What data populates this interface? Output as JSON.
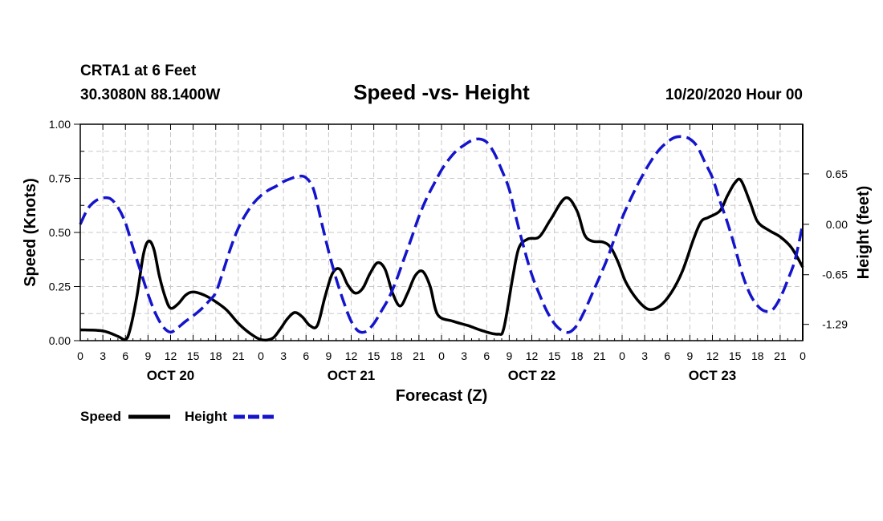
{
  "header": {
    "station": "CRTA1 at 6 Feet",
    "coords": "30.3080N 88.1400W",
    "title": "Speed -vs- Height",
    "run": "10/20/2020 Hour 00"
  },
  "chart_data": {
    "type": "line",
    "title": "Speed -vs- Height",
    "xlabel": "Forecast (Z)",
    "ylabel_left": "Speed (Knots)",
    "ylabel_right": "Height (feet)",
    "grid": true,
    "x_range": [
      0,
      96
    ],
    "y_left_range": [
      0,
      1.0
    ],
    "y_right_range": [
      -1.5,
      1.29
    ],
    "y_left_ticks": [
      "0.00",
      "0.25",
      "0.50",
      "0.75",
      "1.00"
    ],
    "y_left_tick_values": [
      0,
      0.25,
      0.5,
      0.75,
      1.0
    ],
    "y_right_ticks": [
      "-1.29",
      "-0.65",
      "0.00",
      "0.65"
    ],
    "y_right_tick_values": [
      -1.29,
      -0.65,
      0.0,
      0.65
    ],
    "x_tick_labels": [
      "0",
      "3",
      "6",
      "9",
      "12",
      "15",
      "18",
      "21",
      "0",
      "3",
      "6",
      "9",
      "12",
      "15",
      "18",
      "21",
      "0",
      "3",
      "6",
      "9",
      "12",
      "15",
      "18",
      "21",
      "0",
      "3",
      "6",
      "9",
      "12",
      "15",
      "18",
      "21",
      "0"
    ],
    "day_labels": [
      {
        "label": "OCT 20",
        "hour": 12
      },
      {
        "label": "OCT 21",
        "hour": 36
      },
      {
        "label": "OCT 22",
        "hour": 60
      },
      {
        "label": "OCT 23",
        "hour": 84
      }
    ],
    "series": [
      {
        "name": "Speed",
        "axis": "left",
        "color": "#000000",
        "style": "solid",
        "points": [
          [
            0,
            0.05
          ],
          [
            3,
            0.045
          ],
          [
            5,
            0.02
          ],
          [
            6,
            0.005
          ],
          [
            6.6,
            0.05
          ],
          [
            7.5,
            0.2
          ],
          [
            8.4,
            0.4
          ],
          [
            9.1,
            0.46
          ],
          [
            9.8,
            0.42
          ],
          [
            10.5,
            0.3
          ],
          [
            11.3,
            0.2
          ],
          [
            12,
            0.15
          ],
          [
            13,
            0.17
          ],
          [
            14,
            0.21
          ],
          [
            15,
            0.225
          ],
          [
            16.5,
            0.21
          ],
          [
            18,
            0.18
          ],
          [
            19.5,
            0.14
          ],
          [
            21,
            0.08
          ],
          [
            22.5,
            0.035
          ],
          [
            24,
            0.005
          ],
          [
            25.5,
            0.01
          ],
          [
            26.5,
            0.05
          ],
          [
            27.5,
            0.1
          ],
          [
            28.5,
            0.13
          ],
          [
            29.5,
            0.11
          ],
          [
            30.5,
            0.07
          ],
          [
            31.5,
            0.07
          ],
          [
            32.5,
            0.2
          ],
          [
            33.5,
            0.31
          ],
          [
            34.5,
            0.33
          ],
          [
            35.5,
            0.26
          ],
          [
            36.5,
            0.22
          ],
          [
            37.5,
            0.24
          ],
          [
            38.5,
            0.31
          ],
          [
            39.5,
            0.36
          ],
          [
            40.5,
            0.33
          ],
          [
            41.5,
            0.22
          ],
          [
            42.5,
            0.16
          ],
          [
            43.5,
            0.22
          ],
          [
            44.5,
            0.3
          ],
          [
            45.5,
            0.32
          ],
          [
            46.5,
            0.25
          ],
          [
            47.5,
            0.12
          ],
          [
            49.5,
            0.09
          ],
          [
            51.5,
            0.07
          ],
          [
            53.5,
            0.045
          ],
          [
            55.5,
            0.03
          ],
          [
            56.3,
            0.06
          ],
          [
            57.5,
            0.3
          ],
          [
            58.3,
            0.43
          ],
          [
            59.5,
            0.47
          ],
          [
            61,
            0.48
          ],
          [
            62.5,
            0.56
          ],
          [
            64.5,
            0.66
          ],
          [
            66,
            0.6
          ],
          [
            67,
            0.49
          ],
          [
            68,
            0.46
          ],
          [
            69.5,
            0.455
          ],
          [
            70.5,
            0.43
          ],
          [
            71.5,
            0.36
          ],
          [
            72.5,
            0.27
          ],
          [
            74,
            0.19
          ],
          [
            75.5,
            0.145
          ],
          [
            77,
            0.16
          ],
          [
            78.5,
            0.22
          ],
          [
            80,
            0.32
          ],
          [
            81.5,
            0.47
          ],
          [
            82.5,
            0.55
          ],
          [
            83.5,
            0.57
          ],
          [
            85,
            0.6
          ],
          [
            86,
            0.67
          ],
          [
            87,
            0.73
          ],
          [
            87.8,
            0.74
          ],
          [
            89,
            0.64
          ],
          [
            90,
            0.55
          ],
          [
            91.5,
            0.51
          ],
          [
            93,
            0.48
          ],
          [
            94.5,
            0.43
          ],
          [
            96,
            0.34
          ]
        ]
      },
      {
        "name": "Height",
        "axis": "right",
        "color": "#1414cc",
        "style": "dashed",
        "points": [
          [
            0,
            0.0
          ],
          [
            1,
            0.2
          ],
          [
            2,
            0.3
          ],
          [
            3,
            0.34
          ],
          [
            4,
            0.33
          ],
          [
            5,
            0.22
          ],
          [
            6,
            0.02
          ],
          [
            7,
            -0.3
          ],
          [
            8,
            -0.6
          ],
          [
            9,
            -0.9
          ],
          [
            10,
            -1.15
          ],
          [
            11,
            -1.32
          ],
          [
            12,
            -1.39
          ],
          [
            13,
            -1.33
          ],
          [
            14,
            -1.25
          ],
          [
            15,
            -1.18
          ],
          [
            16,
            -1.1
          ],
          [
            17,
            -1.0
          ],
          [
            18,
            -0.88
          ],
          [
            19,
            -0.6
          ],
          [
            20,
            -0.3
          ],
          [
            21,
            -0.05
          ],
          [
            22,
            0.13
          ],
          [
            23,
            0.27
          ],
          [
            24,
            0.37
          ],
          [
            25,
            0.44
          ],
          [
            26,
            0.49
          ],
          [
            27,
            0.55
          ],
          [
            28,
            0.59
          ],
          [
            29,
            0.62
          ],
          [
            30,
            0.6
          ],
          [
            31,
            0.45
          ],
          [
            32,
            0.05
          ],
          [
            33,
            -0.35
          ],
          [
            34,
            -0.7
          ],
          [
            35,
            -1.0
          ],
          [
            36,
            -1.25
          ],
          [
            37,
            -1.38
          ],
          [
            38,
            -1.38
          ],
          [
            39,
            -1.28
          ],
          [
            40,
            -1.12
          ],
          [
            41,
            -0.95
          ],
          [
            42,
            -0.72
          ],
          [
            43,
            -0.45
          ],
          [
            44,
            -0.18
          ],
          [
            45,
            0.1
          ],
          [
            46,
            0.33
          ],
          [
            47,
            0.52
          ],
          [
            48,
            0.7
          ],
          [
            49,
            0.84
          ],
          [
            50,
            0.95
          ],
          [
            51,
            1.02
          ],
          [
            52,
            1.08
          ],
          [
            53,
            1.1
          ],
          [
            54,
            1.06
          ],
          [
            55,
            0.92
          ],
          [
            56,
            0.7
          ],
          [
            57,
            0.45
          ],
          [
            58,
            0.05
          ],
          [
            59,
            -0.32
          ],
          [
            60,
            -0.65
          ],
          [
            61,
            -0.9
          ],
          [
            62,
            -1.12
          ],
          [
            63,
            -1.28
          ],
          [
            64,
            -1.37
          ],
          [
            65,
            -1.39
          ],
          [
            66,
            -1.3
          ],
          [
            67,
            -1.12
          ],
          [
            68,
            -0.9
          ],
          [
            69,
            -0.68
          ],
          [
            70,
            -0.45
          ],
          [
            71,
            -0.18
          ],
          [
            72,
            0.08
          ],
          [
            73,
            0.3
          ],
          [
            74,
            0.5
          ],
          [
            75,
            0.68
          ],
          [
            76,
            0.84
          ],
          [
            77,
            0.97
          ],
          [
            78,
            1.06
          ],
          [
            79,
            1.12
          ],
          [
            80,
            1.13
          ],
          [
            81,
            1.1
          ],
          [
            82,
            1.0
          ],
          [
            83,
            0.8
          ],
          [
            84,
            0.6
          ],
          [
            85,
            0.3
          ],
          [
            86,
            0.02
          ],
          [
            87,
            -0.3
          ],
          [
            88,
            -0.65
          ],
          [
            89,
            -0.9
          ],
          [
            90,
            -1.05
          ],
          [
            91,
            -1.12
          ],
          [
            92,
            -1.1
          ],
          [
            93,
            -0.95
          ],
          [
            94,
            -0.72
          ],
          [
            95,
            -0.45
          ],
          [
            96,
            0.0
          ]
        ]
      }
    ]
  },
  "legend": {
    "speed_label": "Speed",
    "height_label": "Height"
  }
}
